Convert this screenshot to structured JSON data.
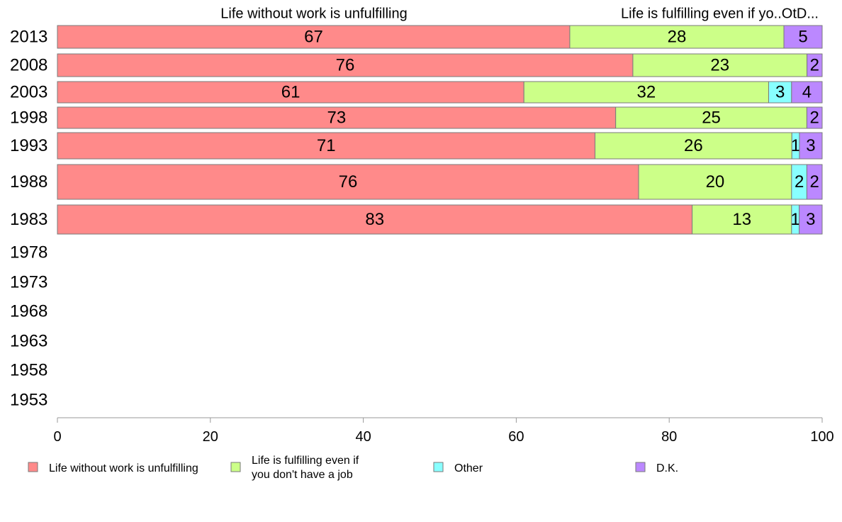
{
  "chart_data": {
    "type": "bar",
    "orientation": "horizontal",
    "stacked": true,
    "categories": [
      "2013",
      "2008",
      "2003",
      "1998",
      "1993",
      "1988",
      "1983",
      "1978",
      "1973",
      "1968",
      "1963",
      "1958",
      "1953"
    ],
    "series": [
      {
        "name": "Life without work is unfulfilling",
        "color": "#ff8a8a",
        "values": [
          67,
          76,
          61,
          73,
          71,
          76,
          83,
          null,
          null,
          null,
          null,
          null,
          null
        ]
      },
      {
        "name": "Life is fulfilling even if you don't have a job",
        "color": "#ccff88",
        "values": [
          28,
          23,
          32,
          25,
          26,
          20,
          13,
          null,
          null,
          null,
          null,
          null,
          null
        ]
      },
      {
        "name": "Other",
        "color": "#88ffff",
        "values": [
          0,
          0,
          3,
          0,
          1,
          2,
          1,
          null,
          null,
          null,
          null,
          null,
          null
        ]
      },
      {
        "name": "D.K.",
        "color": "#bb88ff",
        "values": [
          5,
          2,
          4,
          2,
          3,
          2,
          3,
          null,
          null,
          null,
          null,
          null,
          null
        ]
      }
    ],
    "column_headers": [
      "Life without work is unfulfilling",
      "Life is fulfilling even if yo..OtD..."
    ],
    "xlim": [
      0,
      100
    ],
    "xticks": [
      0,
      20,
      40,
      60,
      80,
      100
    ],
    "legend_position": "bottom",
    "legend_lines": [
      [
        "Life without work is unfulfilling"
      ],
      [
        "Life is fulfilling even if",
        "you don't have a job"
      ],
      [
        "Other"
      ],
      [
        "D.K."
      ]
    ],
    "grid": false
  }
}
